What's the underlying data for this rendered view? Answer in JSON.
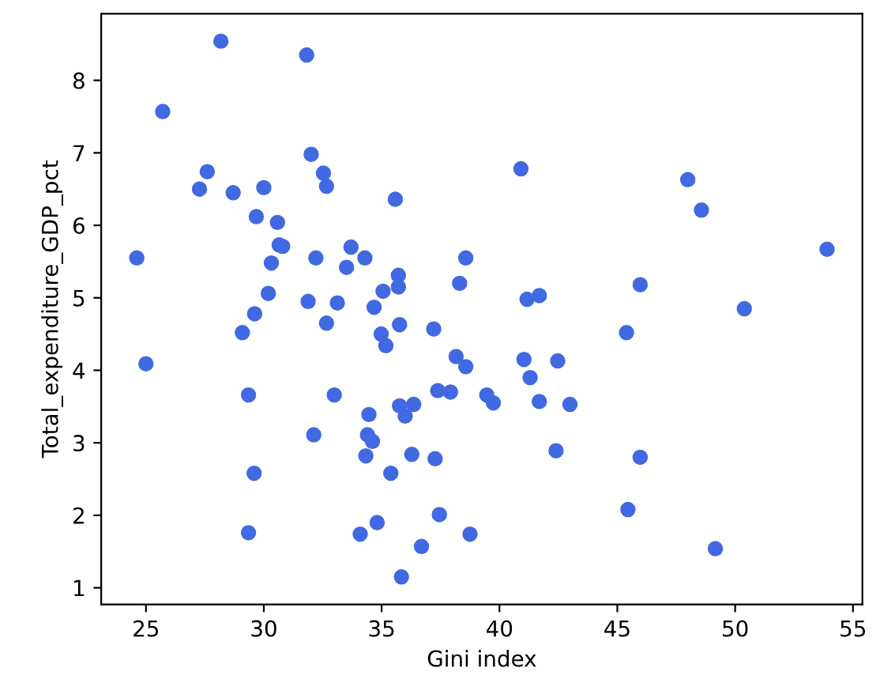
{
  "chart_data": {
    "type": "scatter",
    "xlabel": "Gini index",
    "ylabel": "Total_expenditure_GDP_pct",
    "marker": "circle",
    "grid": false,
    "xlim": [
      23.1,
      55.4
    ],
    "ylim": [
      0.77,
      8.92
    ],
    "xticks": [
      25,
      30,
      35,
      40,
      45,
      50,
      55
    ],
    "yticks": [
      1,
      2,
      3,
      4,
      5,
      6,
      7,
      8
    ],
    "series": [
      {
        "color": "#4169e1",
        "x": [
          28.18,
          31.82,
          25.71,
          32.01,
          27.6,
          32.53,
          32.66,
          27.27,
          28.7,
          30.0,
          35.58,
          29.68,
          30.58,
          30.65,
          30.8,
          33.7,
          24.61,
          32.21,
          34.29,
          30.32,
          33.51,
          38.57,
          35.71,
          35.71,
          35.06,
          38.31,
          30.19,
          31.88,
          33.12,
          34.68,
          29.61,
          32.66,
          35.76,
          40.91,
          47.99,
          48.57,
          53.9,
          41.17,
          41.69,
          45.97,
          50.39,
          29.09,
          34.98,
          35.18,
          37.21,
          38.16,
          38.57,
          25.0,
          29.35,
          32.99,
          37.38,
          37.92,
          39.46,
          39.74,
          34.46,
          35.76,
          36.36,
          36.0,
          32.12,
          34.4,
          34.61,
          34.33,
          36.28,
          37.27,
          29.59,
          35.39,
          29.35,
          34.09,
          34.81,
          37.45,
          38.75,
          36.69,
          35.84,
          45.39,
          41.04,
          42.47,
          41.3,
          41.69,
          42.99,
          42.4,
          45.97,
          45.45,
          49.16
        ],
        "values": [
          8.54,
          8.35,
          7.57,
          6.98,
          6.74,
          6.72,
          6.54,
          6.5,
          6.45,
          6.52,
          6.36,
          6.12,
          6.04,
          5.73,
          5.71,
          5.7,
          5.55,
          5.55,
          5.55,
          5.48,
          5.42,
          5.55,
          5.31,
          5.15,
          5.09,
          5.2,
          5.06,
          4.95,
          4.93,
          4.87,
          4.78,
          4.65,
          4.63,
          6.78,
          6.63,
          6.21,
          5.67,
          4.98,
          5.03,
          5.18,
          4.85,
          4.52,
          4.5,
          4.34,
          4.57,
          4.19,
          4.05,
          4.09,
          3.66,
          3.66,
          3.72,
          3.7,
          3.66,
          3.55,
          3.39,
          3.51,
          3.53,
          3.37,
          3.11,
          3.11,
          3.02,
          2.82,
          2.84,
          2.78,
          2.58,
          2.58,
          1.76,
          1.74,
          1.9,
          2.01,
          1.74,
          1.57,
          1.15,
          4.52,
          4.15,
          4.13,
          3.9,
          3.57,
          3.53,
          2.89,
          2.8,
          2.08,
          1.54
        ]
      }
    ]
  }
}
